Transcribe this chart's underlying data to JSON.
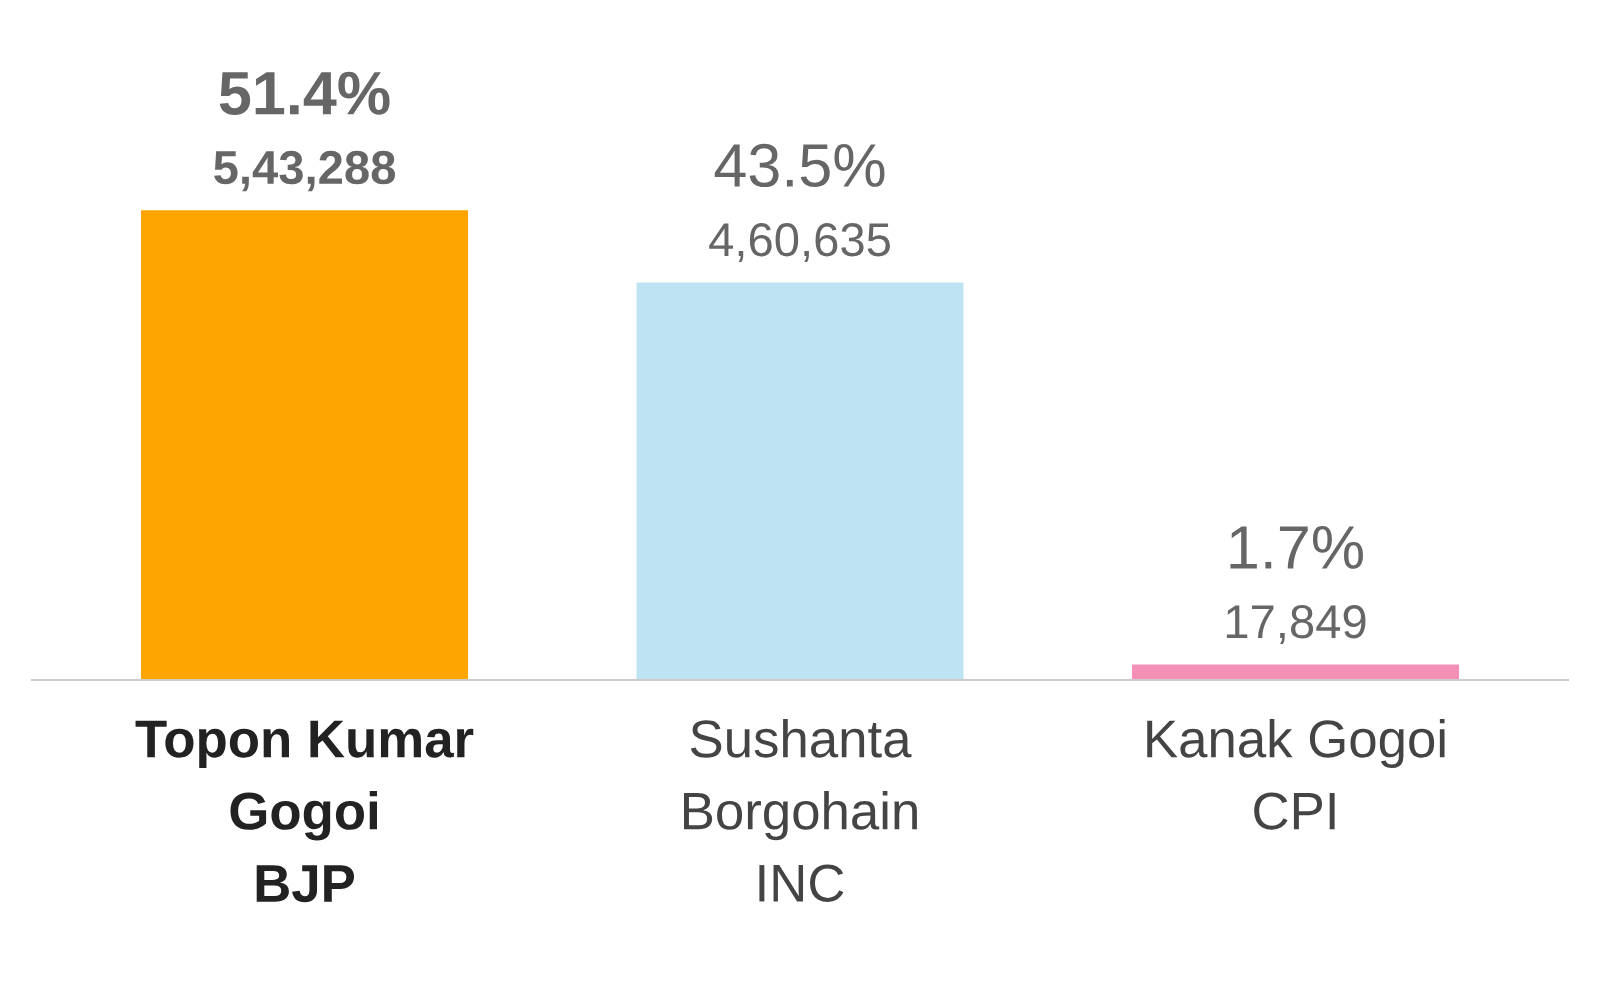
{
  "chart_data": {
    "type": "bar",
    "categories": [
      "Topon Kumar\nGogoi\nBJP",
      "Sushanta\nBorgohain\nINC",
      "Kanak Gogoi\nCPI"
    ],
    "values": [
      51.4,
      43.5,
      1.7
    ],
    "colors": [
      "#ffa500",
      "#bee3f3",
      "#f490b5"
    ],
    "value_labels": [
      "51.4%\n5,43,288",
      "43.5%\n4,60,635",
      "1.7%\n17,849"
    ],
    "grid": false,
    "legend": false
  }
}
